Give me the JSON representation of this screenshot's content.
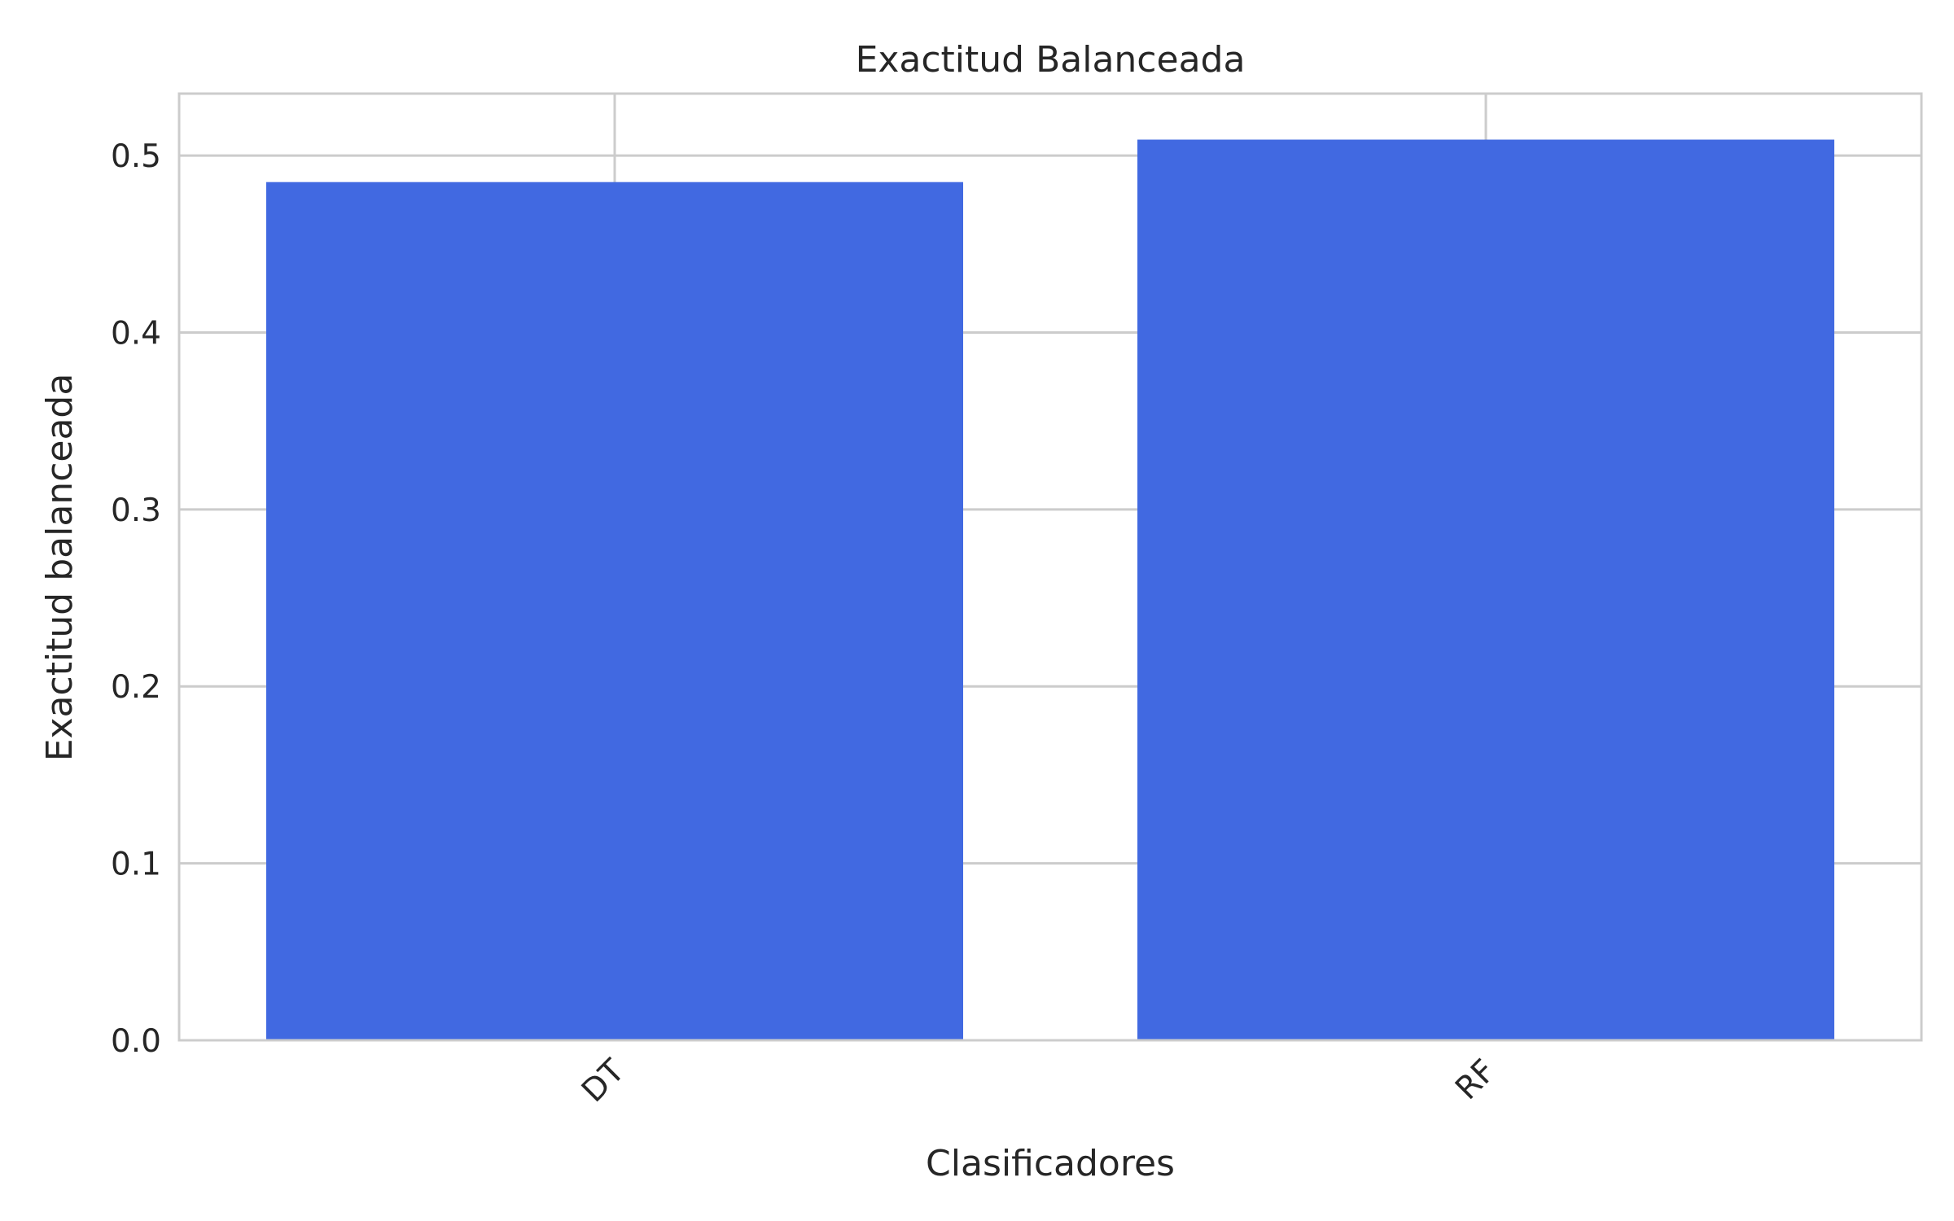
{
  "chart_data": {
    "type": "bar",
    "title": "Exactitud Balanceada",
    "xlabel": "Clasificadores",
    "ylabel": "Exactitud balanceada",
    "categories": [
      "DT",
      "RF"
    ],
    "values": [
      0.485,
      0.509
    ],
    "ylim": [
      0,
      0.535
    ],
    "yticks": [
      0.0,
      0.1,
      0.2,
      0.3,
      0.4,
      0.5
    ],
    "ytick_labels": [
      "0.0",
      "0.1",
      "0.2",
      "0.3",
      "0.4",
      "0.5"
    ],
    "grid": true,
    "legend": "none",
    "xtick_rotation": -45,
    "colors": {
      "bar": "#4169e1",
      "grid": "#cccccc",
      "spine": "#cccccc",
      "background": "#ffffff"
    }
  }
}
